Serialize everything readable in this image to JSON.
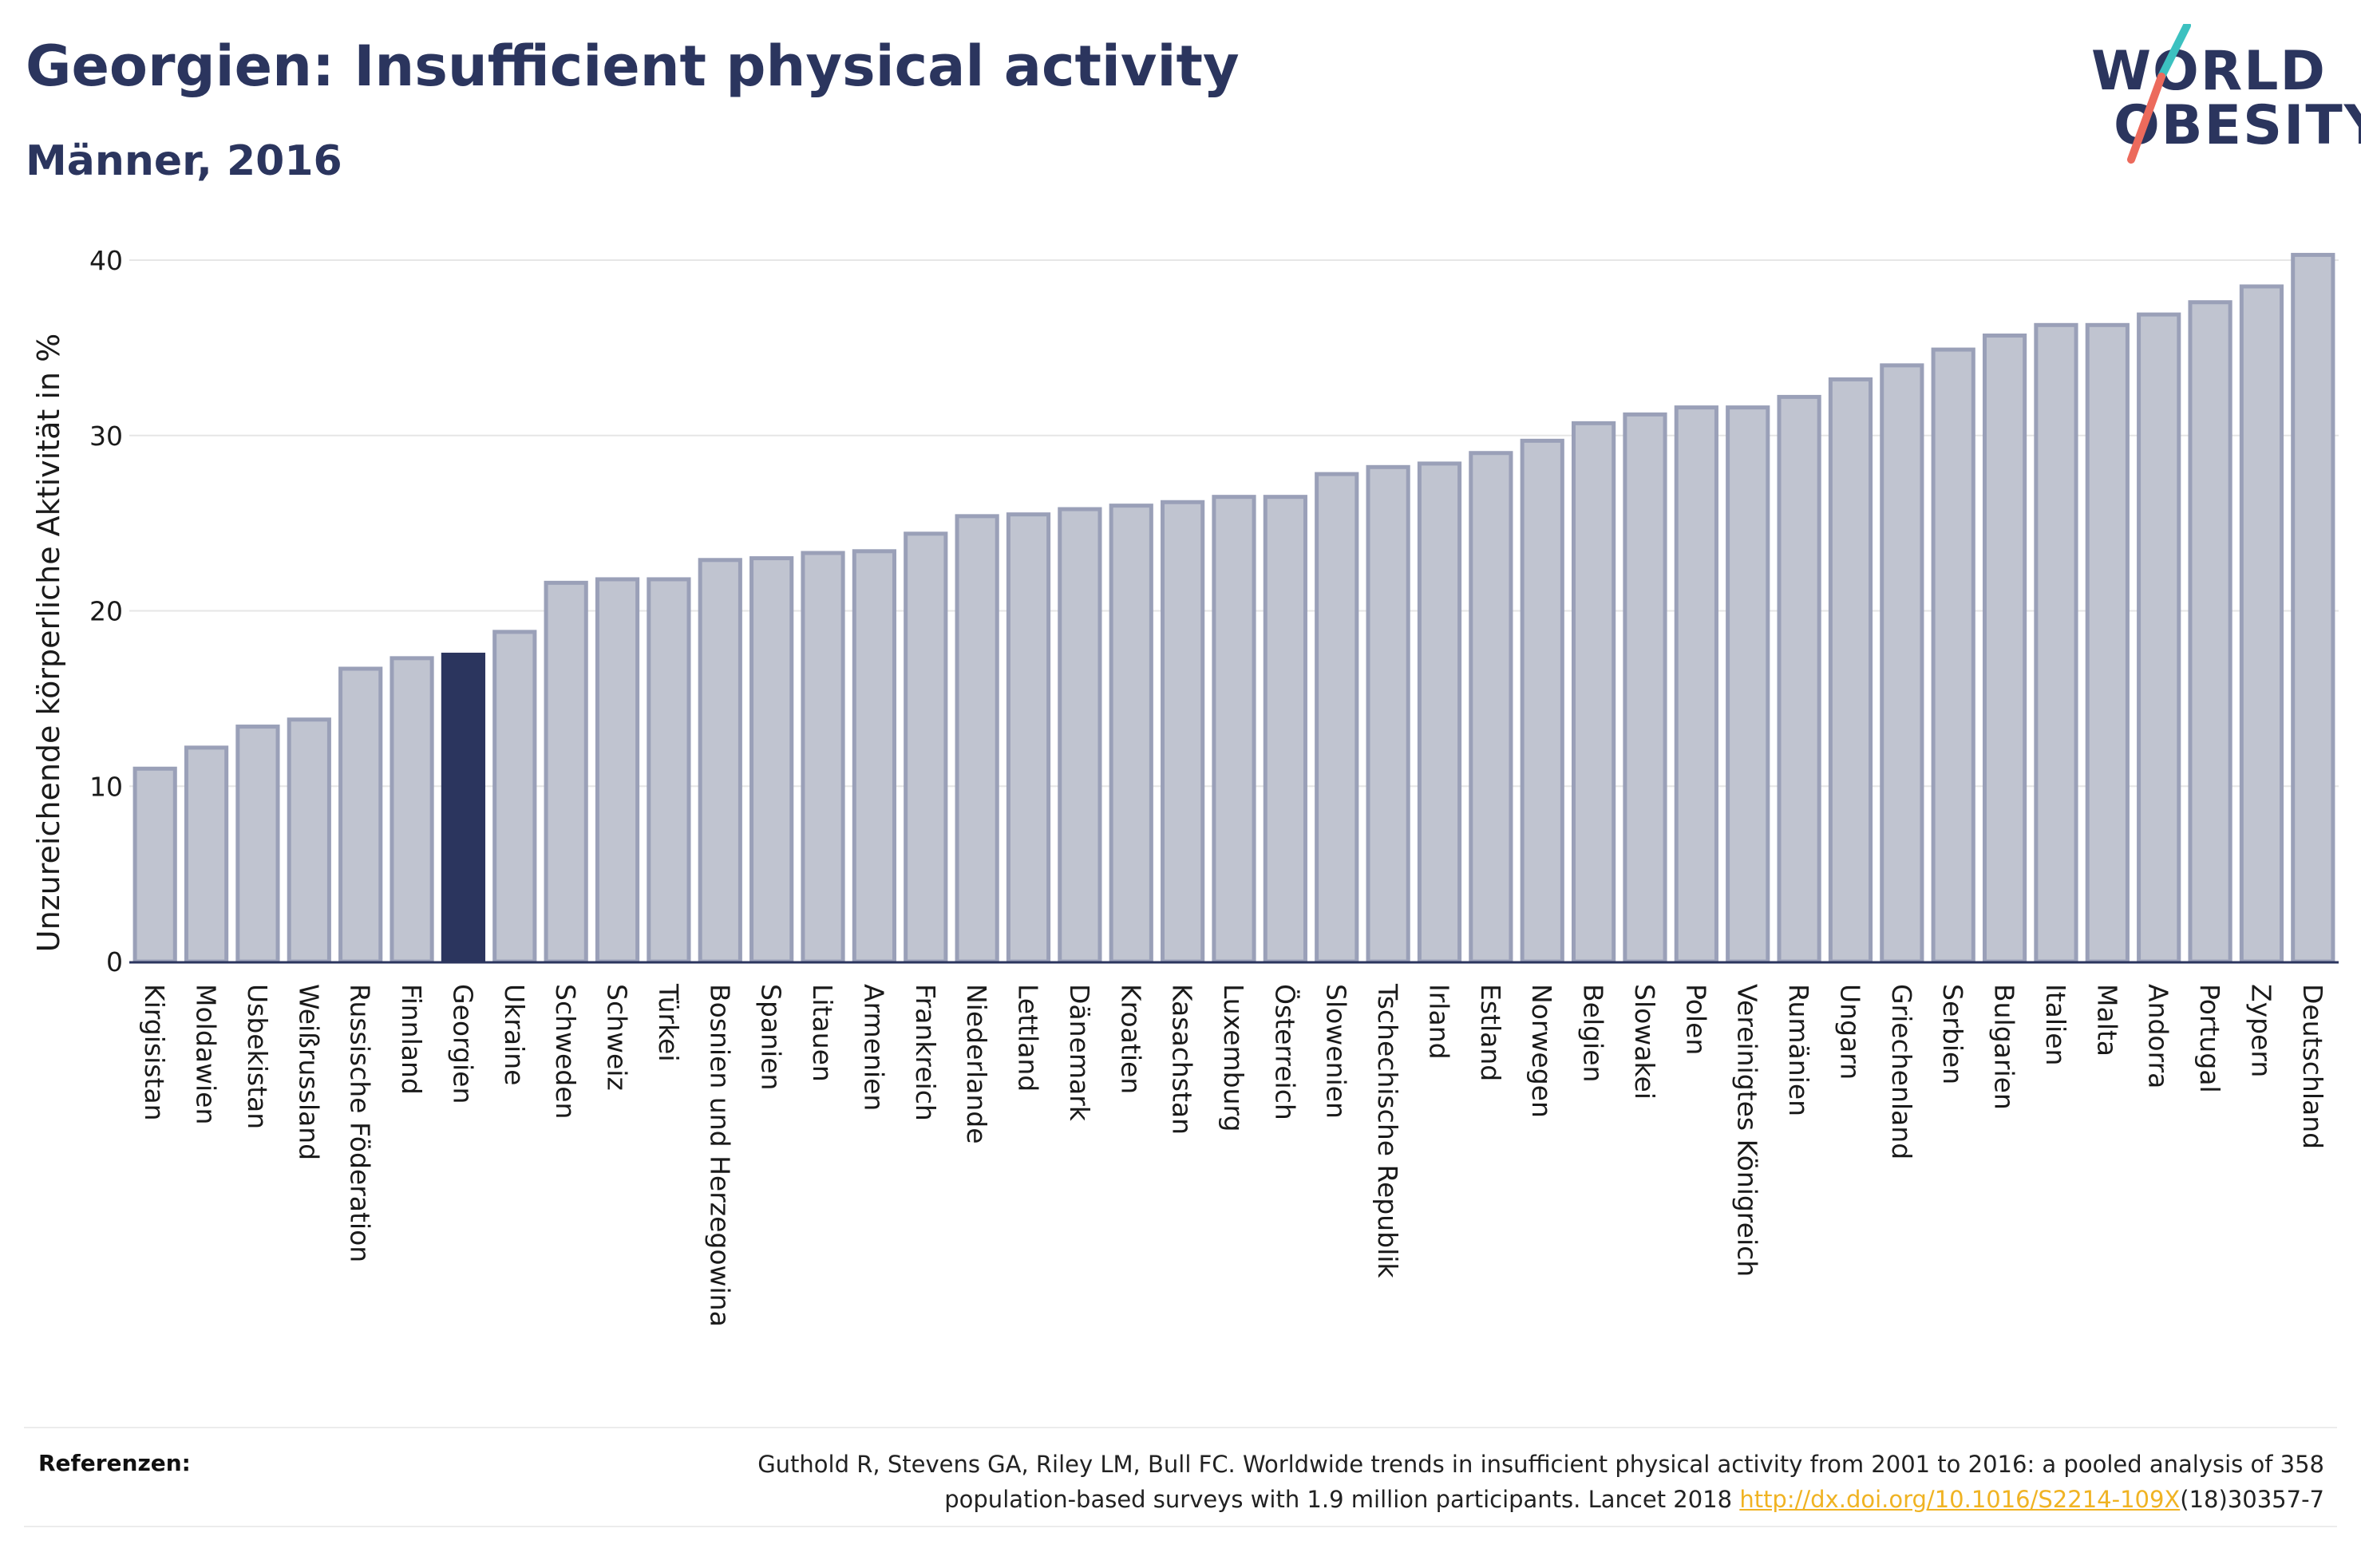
{
  "header": {
    "title": "Georgien: Insufficient physical activity",
    "subtitle": "Männer, 2016"
  },
  "logo": {
    "line1": "WORLD",
    "line2": "OBESITY",
    "colors": {
      "text": "#2b355e",
      "teal": "#3cc1c0",
      "coral": "#ec6a5c"
    }
  },
  "colors": {
    "bar_fill": "#c0c4d0",
    "bar_stroke": "#9aa0b8",
    "highlight": "#2b355e",
    "axis": "#2b355e",
    "grid": "#e6e6e6",
    "text": "#1a1a1a"
  },
  "chart_data": {
    "type": "bar",
    "title": "",
    "xlabel": "",
    "ylabel": "Unzureichende körperliche Aktivität in %",
    "ylim": [
      0,
      41
    ],
    "yticks": [
      0,
      10,
      20,
      30,
      40
    ],
    "grid": true,
    "highlight_category": "Georgien",
    "categories": [
      "Kirgisistan",
      "Moldawien",
      "Usbekistan",
      "Weißrussland",
      "Russische Föderation",
      "Finnland",
      "Georgien",
      "Ukraine",
      "Schweden",
      "Schweiz",
      "Türkei",
      "Bosnien und Herzegowina",
      "Spanien",
      "Litauen",
      "Armenien",
      "Frankreich",
      "Niederlande",
      "Lettland",
      "Dänemark",
      "Kroatien",
      "Kasachstan",
      "Luxemburg",
      "Österreich",
      "Slowenien",
      "Tschechische Republik",
      "Irland",
      "Estland",
      "Norwegen",
      "Belgien",
      "Slowakei",
      "Polen",
      "Vereinigtes Königreich",
      "Rumänien",
      "Ungarn",
      "Griechenland",
      "Serbien",
      "Bulgarien",
      "Italien",
      "Malta",
      "Andorra",
      "Portugal",
      "Zypern",
      "Deutschland"
    ],
    "values": [
      11.0,
      12.2,
      13.4,
      13.8,
      16.7,
      17.3,
      17.5,
      18.8,
      21.6,
      21.8,
      21.8,
      22.9,
      23.0,
      23.3,
      23.4,
      24.4,
      25.4,
      25.5,
      25.8,
      26.0,
      26.2,
      26.5,
      26.5,
      27.8,
      28.2,
      28.4,
      29.0,
      29.7,
      30.7,
      31.2,
      31.6,
      31.6,
      32.2,
      33.2,
      34.0,
      34.9,
      35.7,
      36.3,
      36.3,
      36.9,
      37.6,
      38.5,
      40.3
    ]
  },
  "references": {
    "label": "Referenzen:",
    "text_line1": "Guthold R, Stevens GA, Riley LM, Bull FC. Worldwide trends in insufficient physical activity from 2001 to 2016: a pooled analysis of 358",
    "text_line2_prefix": "population-based surveys with 1.9 million participants. Lancet 2018 ",
    "link_text": "http://dx.doi.org/10.1016/S2214-109X",
    "text_line2_suffix": "(18)30357-7"
  }
}
